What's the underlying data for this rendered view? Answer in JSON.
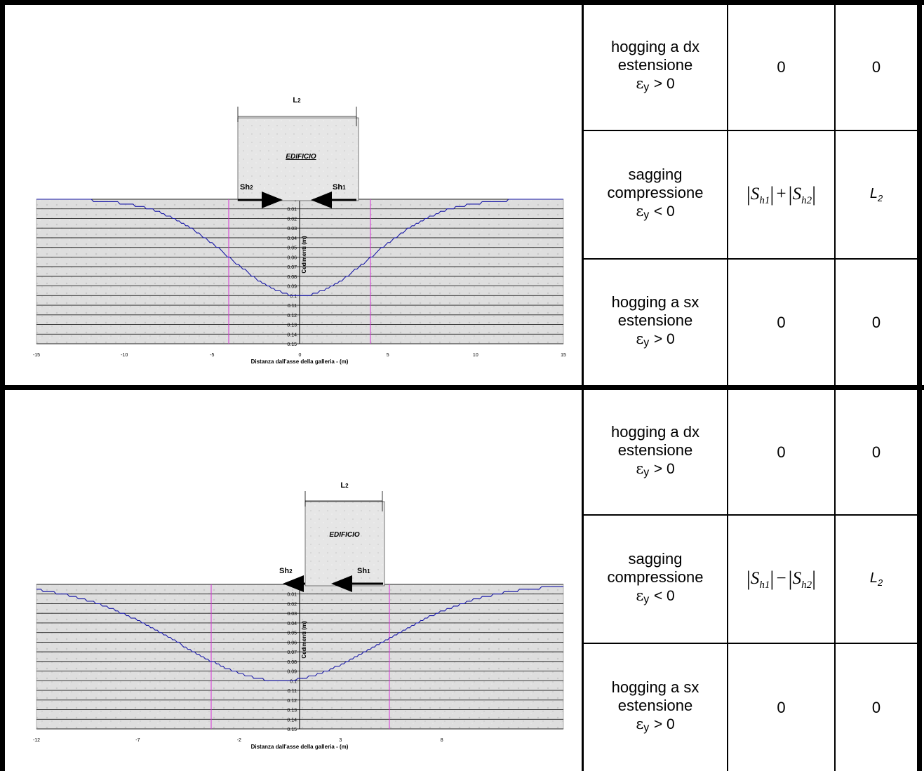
{
  "panels": [
    {
      "building_label": "EDIFICIO",
      "length_label": "L",
      "length_sub": "2",
      "force_left": "Sh",
      "force_left_sub": "2",
      "force_right": "Sh",
      "force_right_sub": "1",
      "x_axis_label": "Distanza dall'asse della galleria - (m)",
      "y_axis_label": "Cedimenti (m)",
      "x_ticks": [
        "-15",
        "-10",
        "-5",
        "0",
        "5",
        "10",
        "15"
      ],
      "y_ticks": [
        "0",
        "0.01",
        "0.02",
        "0.03",
        "0.04",
        "0.05",
        "0.06",
        "0.07",
        "0.08",
        "0.09",
        "0.1",
        "0.11",
        "0.12",
        "0.13",
        "0.14",
        "0.15"
      ],
      "cases": [
        {
          "mode": "hogging a dx",
          "state": "estensione",
          "cond": "> 0",
          "val1": "0",
          "val2": "0"
        },
        {
          "mode": "sagging",
          "state": "compressione",
          "cond": "< 0",
          "formula_op": "+",
          "val2_main": "L",
          "val2_sub": "2"
        },
        {
          "mode": "hogging a sx",
          "state": "estensione",
          "cond": "> 0",
          "val1": "0",
          "val2": "0"
        }
      ]
    },
    {
      "building_label": "EDIFICIO",
      "length_label": "L",
      "length_sub": "2",
      "force_left": "Sh",
      "force_left_sub": "2",
      "force_right": "Sh",
      "force_right_sub": "1",
      "x_axis_label": "Distanza dall'asse della galleria - (m)",
      "y_axis_label": "Cedimenti (m)",
      "x_ticks": [
        "-12",
        "-7",
        "-2",
        "3",
        "8"
      ],
      "y_ticks": [
        "0",
        "0.01",
        "0.02",
        "0.03",
        "0.04",
        "0.05",
        "0.06",
        "0.07",
        "0.08",
        "0.09",
        "0.1",
        "0.11",
        "0.12",
        "0.13",
        "0.14",
        "0.15"
      ],
      "cases": [
        {
          "mode": "hogging a dx",
          "state": "estensione",
          "cond": "> 0",
          "val1": "0",
          "val2": "0"
        },
        {
          "mode": "sagging",
          "state": "compressione",
          "cond": "< 0",
          "formula_op": "−",
          "val2_main": "L",
          "val2_sub": "2"
        },
        {
          "mode": "hogging a sx",
          "state": "estensione",
          "cond": "> 0",
          "val1": "0",
          "val2": "0"
        }
      ]
    }
  ],
  "symbols": {
    "epsilon": "ε",
    "epsilon_sub": "y",
    "S": "S",
    "sub1": "h1",
    "sub2": "h2",
    "abs_bar": "|"
  },
  "colors": {
    "curve": "#1a1aa8",
    "inflection": "#d633d6",
    "ground": "#dcdcdc",
    "building": "#e4e4e4"
  }
}
